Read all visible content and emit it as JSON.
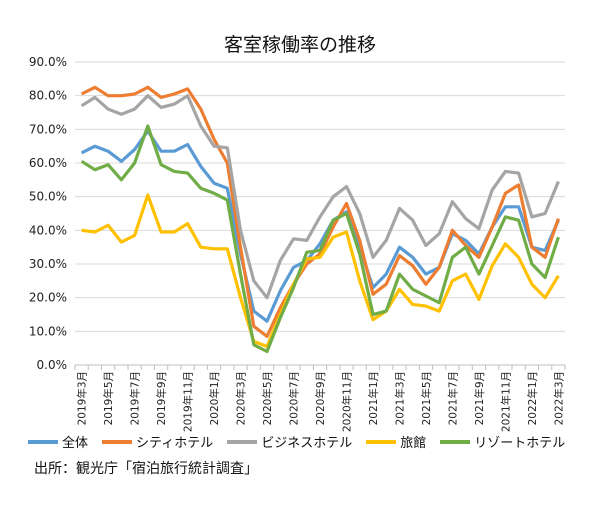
{
  "chart_data": {
    "type": "line",
    "title": "客室稼働率の推移",
    "xlabel": "",
    "ylabel": "",
    "ylim": [
      0,
      90
    ],
    "yticks": [
      "0.0%",
      "10.0%",
      "20.0%",
      "30.0%",
      "40.0%",
      "50.0%",
      "60.0%",
      "70.0%",
      "80.0%",
      "90.0%"
    ],
    "x": [
      "2019年3月",
      "2019年4月",
      "2019年5月",
      "2019年6月",
      "2019年7月",
      "2019年8月",
      "2019年9月",
      "2019年10月",
      "2019年11月",
      "2019年12月",
      "2020年1月",
      "2020年2月",
      "2020年3月",
      "2020年4月",
      "2020年5月",
      "2020年6月",
      "2020年7月",
      "2020年8月",
      "2020年9月",
      "2020年10月",
      "2020年11月",
      "2020年12月",
      "2021年1月",
      "2021年2月",
      "2021年3月",
      "2021年4月",
      "2021年5月",
      "2021年6月",
      "2021年7月",
      "2021年8月",
      "2021年9月",
      "2021年10月",
      "2021年11月",
      "2021年12月",
      "2022年1月",
      "2022年2月",
      "2022年3月"
    ],
    "xticks_shown": [
      "2019年3月",
      "2019年5月",
      "2019年7月",
      "2019年9月",
      "2019年11月",
      "2020年1月",
      "2020年3月",
      "2020年5月",
      "2020年7月",
      "2020年9月",
      "2020年11月",
      "2021年1月",
      "2021年3月",
      "2021年5月",
      "2021年7月",
      "2021年9月",
      "2021年11月",
      "2022年1月",
      "2022年3月"
    ],
    "grid": true,
    "legend_position": "bottom",
    "series": [
      {
        "name": "全体",
        "color": "#5B9BD5",
        "values": [
          63,
          65,
          63.5,
          60.5,
          64,
          69.5,
          63.5,
          63.5,
          65.5,
          59,
          54,
          52.5,
          33,
          16,
          13,
          22,
          29,
          31,
          36,
          43,
          45.5,
          35,
          23,
          27,
          35,
          32,
          27,
          29,
          39,
          37,
          33,
          41,
          47,
          47,
          35,
          34,
          43
        ]
      },
      {
        "name": "シティホテル",
        "color": "#ED7D31",
        "values": [
          80.5,
          82.5,
          80,
          80,
          80.5,
          82.5,
          79.5,
          80.5,
          82,
          76,
          67,
          60,
          35,
          11.5,
          8.5,
          17,
          24,
          30,
          33,
          41,
          48,
          37,
          21,
          24,
          32.5,
          29.5,
          24,
          29,
          40,
          35.5,
          32,
          41,
          51,
          53.5,
          35,
          32,
          43.5
        ]
      },
      {
        "name": "ビジネスホテル",
        "color": "#A5A5A5",
        "values": [
          77,
          79.5,
          76,
          74.5,
          76,
          80,
          76.5,
          77.5,
          80,
          71,
          65,
          64.5,
          40,
          25,
          20,
          31,
          37.5,
          37,
          44,
          50,
          53,
          45,
          32,
          37,
          46.5,
          43,
          35.5,
          39,
          48.5,
          43.5,
          40.5,
          52,
          57.5,
          57,
          44,
          45,
          54.5
        ]
      },
      {
        "name": "旅館",
        "color": "#FFC000",
        "values": [
          40,
          39.5,
          41.5,
          36.5,
          38.5,
          50.5,
          39.5,
          39.5,
          42,
          35,
          34.5,
          34.5,
          20,
          7,
          5.5,
          15,
          24,
          31.5,
          32,
          38,
          39.5,
          25,
          13.5,
          16,
          22.5,
          18,
          17.5,
          16,
          25,
          27,
          19.5,
          29.5,
          36,
          32,
          24,
          20,
          26.5
        ]
      },
      {
        "name": "リゾートホテル",
        "color": "#70AD47",
        "values": [
          60.5,
          58,
          59.5,
          55,
          60,
          71,
          59.5,
          57.5,
          57,
          52.5,
          51,
          49,
          27,
          6,
          4,
          14,
          23,
          33.5,
          34,
          43,
          45,
          33,
          15,
          16,
          27,
          22.5,
          20.5,
          18.5,
          32,
          35,
          27,
          35.5,
          44,
          43,
          30,
          26,
          38
        ]
      }
    ]
  },
  "source": "出所：観光庁「宿泊旅行統計調査」"
}
